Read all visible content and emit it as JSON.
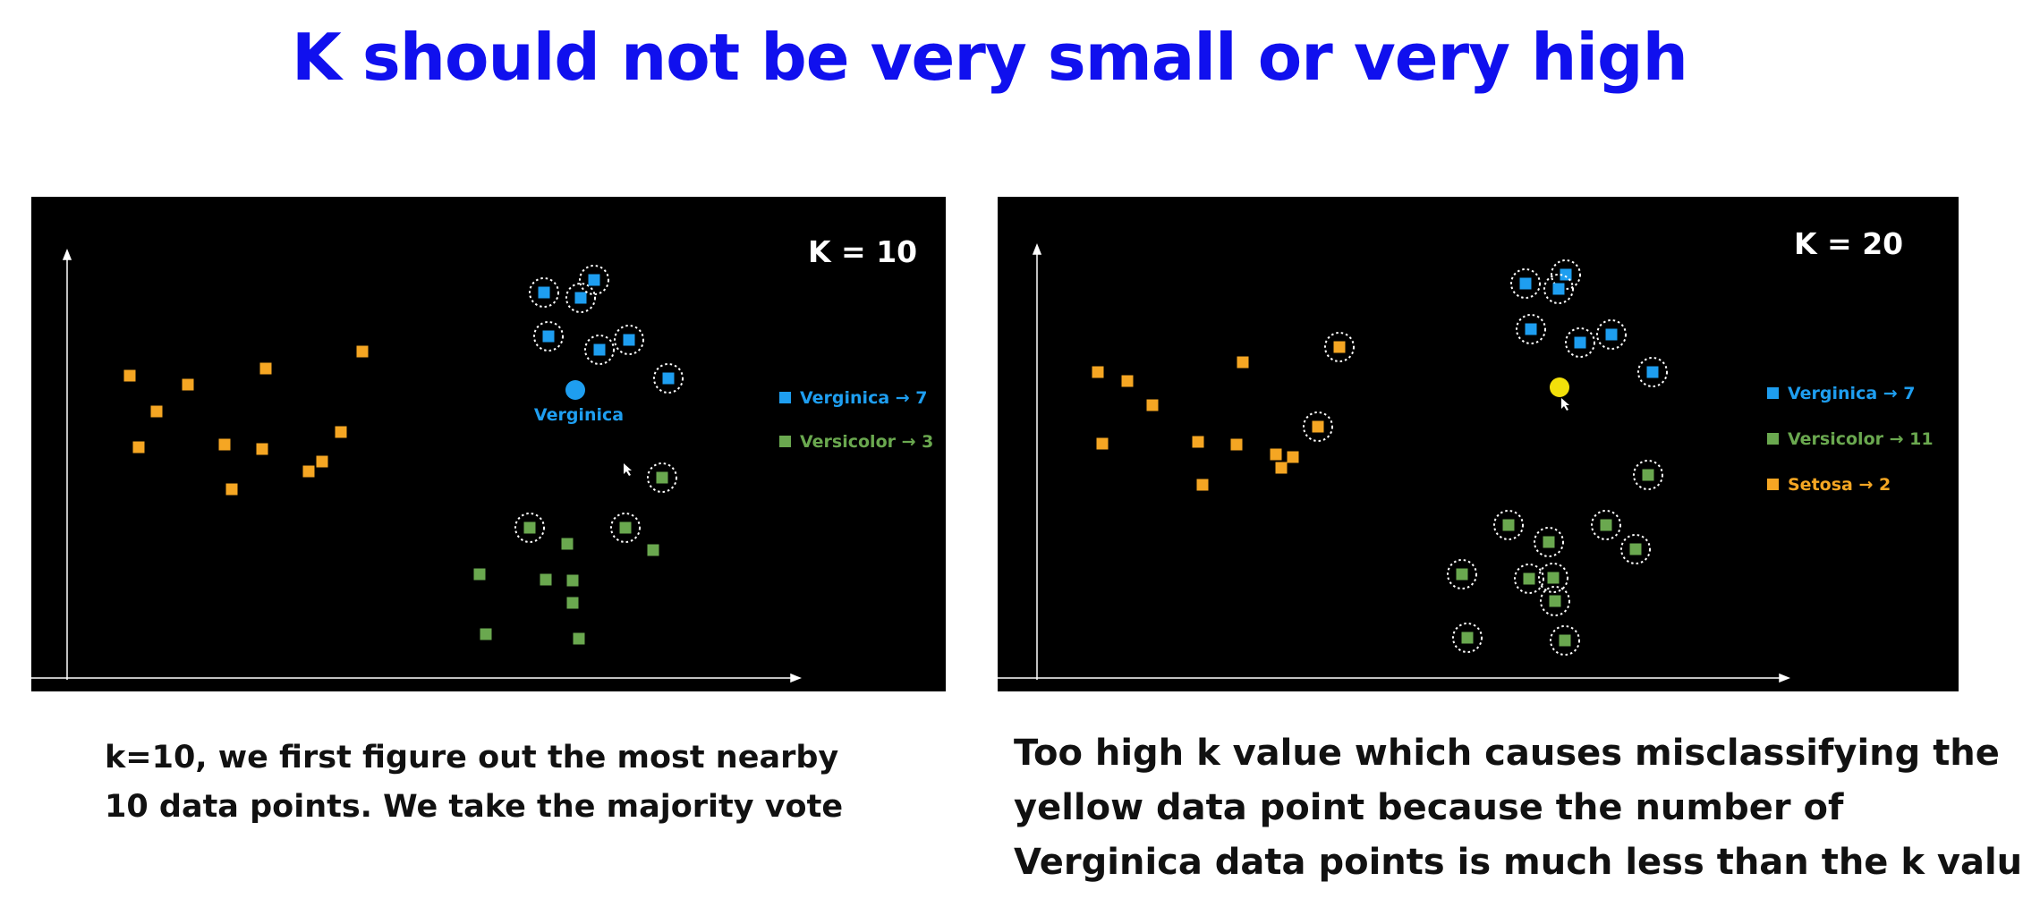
{
  "slide": {
    "title": "K should not be very small or very high"
  },
  "colors": {
    "title": "#1010ee",
    "verginica": "#1e9ef0",
    "versicolor": "#6aa84f",
    "setosa": "#f5a623",
    "query_point_right": "#f2e00a",
    "panel_background": "#000000"
  },
  "left_panel": {
    "k_label": "K = 10",
    "query_label": "Verginica",
    "legend": [
      {
        "name": "verginica",
        "text": "Verginica → 7",
        "color": "#1e9ef0"
      },
      {
        "name": "versicolor",
        "text": "Versicolor → 3",
        "color": "#6aa84f"
      }
    ],
    "caption_lines": [
      "k=10, we first figure out the most nearby",
      "10 data points. We take the majority vote"
    ]
  },
  "right_panel": {
    "k_label": "K = 20",
    "legend": [
      {
        "name": "verginica",
        "text": "Verginica → 7",
        "color": "#1e9ef0"
      },
      {
        "name": "versicolor",
        "text": "Versicolor → 11",
        "color": "#6aa84f"
      },
      {
        "name": "setosa",
        "text": "Setosa → 2",
        "color": "#f5a623"
      }
    ],
    "caption_lines": [
      "Too high k value which causes misclassifying the",
      "yellow data point because the number of",
      "Verginica data points is much less than the k value"
    ]
  }
}
